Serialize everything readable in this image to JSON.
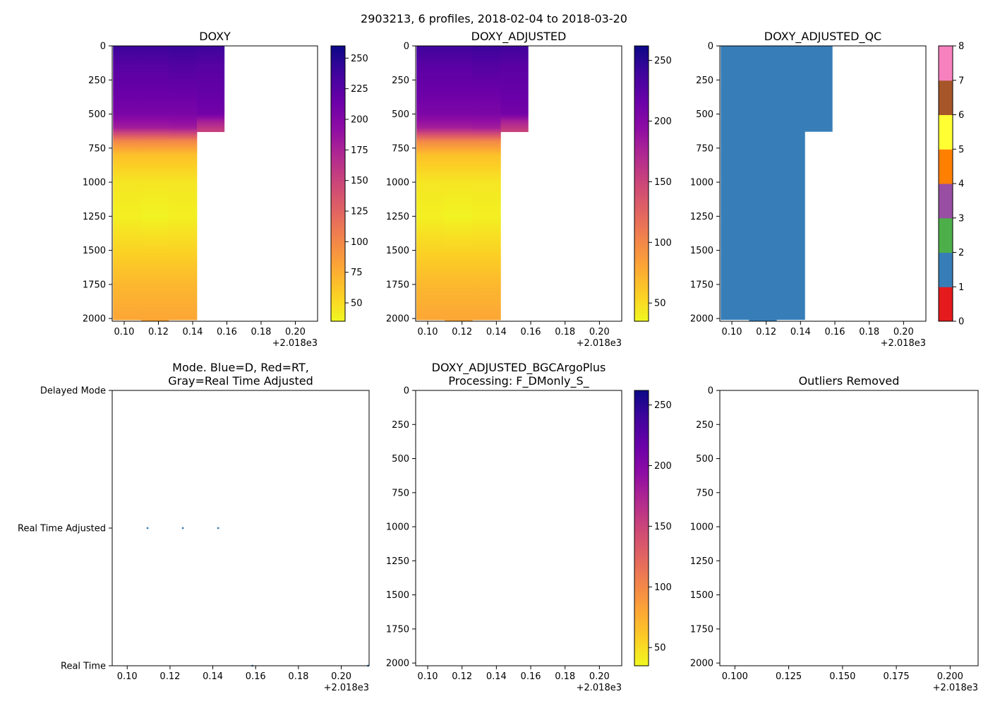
{
  "suptitle": "2903213, 6 profiles, 2018-02-04 to 2018-03-20",
  "offset_label": "+2.018e3",
  "colors": {
    "plasma": [
      "#0d0887",
      "#41049d",
      "#6a00a8",
      "#8f0da4",
      "#b12a90",
      "#cc4778",
      "#e16462",
      "#f2844b",
      "#fca636",
      "#fcce25",
      "#f0f921"
    ],
    "qc": [
      "#e41a1c",
      "#377eb8",
      "#4daf4a",
      "#984ea3",
      "#ff7f00",
      "#ffff33",
      "#a65628",
      "#f781bf",
      "#999999"
    ],
    "mode_points": "#377eb8",
    "frame": "#000000"
  },
  "chart_data": [
    {
      "id": "doxy",
      "type": "heatmap",
      "title": "DOXY",
      "xlim": [
        0.093,
        0.213
      ],
      "ylim": [
        2020,
        0
      ],
      "xticks": [
        0.1,
        0.12,
        0.14,
        0.16,
        0.18,
        0.2
      ],
      "xtick_labels": [
        "0.10",
        "0.12",
        "0.14",
        "0.16",
        "0.18",
        "0.20"
      ],
      "yticks": [
        0,
        250,
        500,
        750,
        1000,
        1250,
        1500,
        1750,
        2000
      ],
      "colorbar": {
        "cmap": "plasma_r",
        "range": [
          35,
          260
        ],
        "ticks": [
          50,
          75,
          100,
          125,
          150,
          175,
          200,
          225,
          250
        ]
      },
      "profiles": [
        {
          "x0": 0.0935,
          "x1": 0.11,
          "depth_max": 2010,
          "profile": [
            [
              0,
              240
            ],
            [
              150,
              225
            ],
            [
              350,
              215
            ],
            [
              500,
              205
            ],
            [
              600,
              180
            ],
            [
              700,
              100
            ],
            [
              800,
              65
            ],
            [
              1000,
              45
            ],
            [
              1250,
              40
            ],
            [
              1500,
              55
            ],
            [
              1750,
              70
            ],
            [
              2000,
              80
            ]
          ]
        },
        {
          "x0": 0.11,
          "x1": 0.126,
          "depth_max": 2020,
          "profile": [
            [
              0,
              240
            ],
            [
              150,
              225
            ],
            [
              350,
              215
            ],
            [
              500,
              205
            ],
            [
              600,
              180
            ],
            [
              700,
              100
            ],
            [
              800,
              65
            ],
            [
              1000,
              45
            ],
            [
              1250,
              38
            ],
            [
              1500,
              55
            ],
            [
              1750,
              70
            ],
            [
              2000,
              80
            ]
          ]
        },
        {
          "x0": 0.126,
          "x1": 0.1425,
          "depth_max": 2010,
          "profile": [
            [
              0,
              242
            ],
            [
              150,
              228
            ],
            [
              350,
              215
            ],
            [
              500,
              205
            ],
            [
              600,
              182
            ],
            [
              700,
              100
            ],
            [
              800,
              65
            ],
            [
              1000,
              45
            ],
            [
              1250,
              40
            ],
            [
              1500,
              55
            ],
            [
              1750,
              70
            ],
            [
              2000,
              80
            ]
          ]
        },
        {
          "x0": 0.1425,
          "x1": 0.1585,
          "depth_max": 630,
          "profile": [
            [
              0,
              240
            ],
            [
              150,
              225
            ],
            [
              350,
              218
            ],
            [
              500,
              210
            ],
            [
              550,
              180
            ],
            [
              630,
              150
            ]
          ]
        }
      ]
    },
    {
      "id": "doxy_adj",
      "type": "heatmap",
      "title": "DOXY_ADJUSTED",
      "xlim": [
        0.093,
        0.213
      ],
      "ylim": [
        2020,
        0
      ],
      "xticks": [
        0.1,
        0.12,
        0.14,
        0.16,
        0.18,
        0.2
      ],
      "xtick_labels": [
        "0.10",
        "0.12",
        "0.14",
        "0.16",
        "0.18",
        "0.20"
      ],
      "yticks": [
        0,
        250,
        500,
        750,
        1000,
        1250,
        1500,
        1750,
        2000
      ],
      "colorbar": {
        "cmap": "plasma_r",
        "range": [
          35,
          262
        ],
        "ticks": [
          50,
          100,
          150,
          200,
          250
        ]
      },
      "profiles": [
        {
          "x0": 0.0935,
          "x1": 0.11,
          "depth_max": 2010,
          "profile": [
            [
              0,
              240
            ],
            [
              150,
              225
            ],
            [
              350,
              215
            ],
            [
              500,
              205
            ],
            [
              600,
              180
            ],
            [
              700,
              100
            ],
            [
              800,
              65
            ],
            [
              1000,
              45
            ],
            [
              1250,
              40
            ],
            [
              1500,
              55
            ],
            [
              1750,
              70
            ],
            [
              2000,
              80
            ]
          ]
        },
        {
          "x0": 0.11,
          "x1": 0.126,
          "depth_max": 2020,
          "profile": [
            [
              0,
              240
            ],
            [
              150,
              225
            ],
            [
              350,
              215
            ],
            [
              500,
              205
            ],
            [
              600,
              180
            ],
            [
              700,
              100
            ],
            [
              800,
              65
            ],
            [
              1000,
              45
            ],
            [
              1250,
              38
            ],
            [
              1500,
              55
            ],
            [
              1750,
              70
            ],
            [
              2000,
              80
            ]
          ]
        },
        {
          "x0": 0.126,
          "x1": 0.1425,
          "depth_max": 2010,
          "profile": [
            [
              0,
              242
            ],
            [
              150,
              228
            ],
            [
              350,
              215
            ],
            [
              500,
              205
            ],
            [
              600,
              182
            ],
            [
              700,
              100
            ],
            [
              800,
              65
            ],
            [
              1000,
              45
            ],
            [
              1250,
              40
            ],
            [
              1500,
              55
            ],
            [
              1750,
              70
            ],
            [
              2000,
              80
            ]
          ]
        },
        {
          "x0": 0.1425,
          "x1": 0.1585,
          "depth_max": 630,
          "profile": [
            [
              0,
              240
            ],
            [
              150,
              225
            ],
            [
              350,
              218
            ],
            [
              500,
              210
            ],
            [
              550,
              180
            ],
            [
              630,
              150
            ]
          ]
        }
      ]
    },
    {
      "id": "doxy_qc",
      "type": "heatmap",
      "title": "DOXY_ADJUSTED_QC",
      "xlim": [
        0.093,
        0.213
      ],
      "ylim": [
        2020,
        0
      ],
      "xticks": [
        0.1,
        0.12,
        0.14,
        0.16,
        0.18,
        0.2
      ],
      "xtick_labels": [
        "0.10",
        "0.12",
        "0.14",
        "0.16",
        "0.18",
        "0.20"
      ],
      "yticks": [
        0,
        250,
        500,
        750,
        1000,
        1250,
        1500,
        1750,
        2000
      ],
      "colorbar": {
        "cmap": "qc",
        "range": [
          0,
          8
        ],
        "ticks": [
          0,
          1,
          2,
          3,
          4,
          5,
          6,
          7,
          8
        ]
      },
      "qc_columns": [
        {
          "x0": 0.0935,
          "x1": 0.11,
          "depth_max": 2010,
          "qc": 1
        },
        {
          "x0": 0.11,
          "x1": 0.126,
          "depth_max": 2020,
          "qc": 1
        },
        {
          "x0": 0.126,
          "x1": 0.1425,
          "depth_max": 2010,
          "qc": 1
        },
        {
          "x0": 0.1425,
          "x1": 0.1585,
          "depth_max": 630,
          "qc": 1
        }
      ]
    },
    {
      "id": "mode",
      "type": "scatter",
      "title_lines": [
        "Mode. Blue=D, Red=RT,",
        "Gray=Real Time Adjusted"
      ],
      "xlim": [
        0.093,
        0.213
      ],
      "ylim": [
        0,
        2
      ],
      "xticks": [
        0.1,
        0.12,
        0.14,
        0.16,
        0.18,
        0.2
      ],
      "xtick_labels": [
        "0.10",
        "0.12",
        "0.14",
        "0.16",
        "0.18",
        "0.20"
      ],
      "yticks": [
        0,
        1,
        2
      ],
      "ytick_labels": [
        "Real Time",
        "Real Time Adjusted",
        "Delayed Mode"
      ],
      "points": [
        {
          "x": 0.1095,
          "y": 1
        },
        {
          "x": 0.126,
          "y": 1
        },
        {
          "x": 0.1425,
          "y": 1
        },
        {
          "x": 0.1585,
          "y": 0
        },
        {
          "x": 0.2125,
          "y": 0
        }
      ]
    },
    {
      "id": "bgc",
      "type": "heatmap",
      "title_lines": [
        "DOXY_ADJUSTED_BGCArgoPlus",
        "Processing: F_DMonly_S_"
      ],
      "xlim": [
        0.093,
        0.213
      ],
      "ylim": [
        2020,
        0
      ],
      "xticks": [
        0.1,
        0.12,
        0.14,
        0.16,
        0.18,
        0.2
      ],
      "xtick_labels": [
        "0.10",
        "0.12",
        "0.14",
        "0.16",
        "0.18",
        "0.20"
      ],
      "yticks": [
        0,
        250,
        500,
        750,
        1000,
        1250,
        1500,
        1750,
        2000
      ],
      "colorbar": {
        "cmap": "plasma_r",
        "range": [
          35,
          262
        ],
        "ticks": [
          50,
          100,
          150,
          200,
          250
        ]
      },
      "profiles": []
    },
    {
      "id": "outliers",
      "type": "scatter",
      "title": "Outliers Removed",
      "xlim": [
        0.093,
        0.213
      ],
      "ylim": [
        2020,
        0
      ],
      "xticks": [
        0.1,
        0.125,
        0.15,
        0.175,
        0.2
      ],
      "xtick_labels": [
        "0.100",
        "0.125",
        "0.150",
        "0.175",
        "0.200"
      ],
      "yticks": [
        0,
        250,
        500,
        750,
        1000,
        1250,
        1500,
        1750,
        2000
      ],
      "points": []
    }
  ]
}
